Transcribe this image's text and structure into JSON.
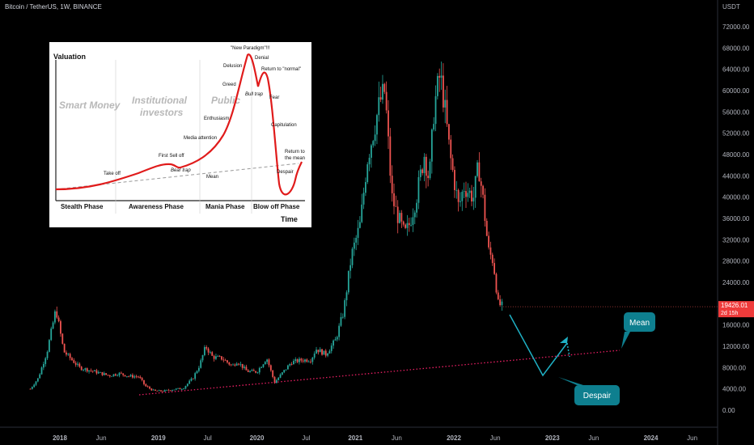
{
  "header": {
    "title": "Bitcoin / TetherUS, 1W, BINANCE"
  },
  "chart_data": {
    "type": "candlestick",
    "currency": "USDT",
    "yticks": [
      "0.00",
      "4000.00",
      "8000.00",
      "12000.00",
      "16000.00",
      "20000.00",
      "24000.00",
      "28000.00",
      "32000.00",
      "36000.00",
      "40000.00",
      "44000.00",
      "48000.00",
      "52000.00",
      "56000.00",
      "60000.00",
      "64000.00",
      "68000.00",
      "72000.00"
    ],
    "xticks": [
      "2018",
      "Jun",
      "2019",
      "Jul",
      "2020",
      "Jul",
      "2021",
      "Jun",
      "2022",
      "Jun",
      "2023",
      "Jun",
      "2024",
      "Jun"
    ],
    "last_price": "19426.01",
    "countdown": "2d 15h",
    "annotations": [
      {
        "name": "Mean",
        "text": "Mean"
      },
      {
        "name": "Despair",
        "text": "Despair"
      }
    ],
    "price_path": [
      [
        2017.7,
        4000
      ],
      [
        2017.78,
        6000
      ],
      [
        2017.87,
        11000
      ],
      [
        2017.96,
        19000
      ],
      [
        2018.04,
        11000
      ],
      [
        2018.12,
        9500
      ],
      [
        2018.2,
        8000
      ],
      [
        2018.3,
        7500
      ],
      [
        2018.4,
        7000
      ],
      [
        2018.5,
        6500
      ],
      [
        2018.6,
        6900
      ],
      [
        2018.7,
        6400
      ],
      [
        2018.8,
        6300
      ],
      [
        2018.87,
        4500
      ],
      [
        2018.96,
        3600
      ],
      [
        2019.05,
        3600
      ],
      [
        2019.15,
        3900
      ],
      [
        2019.25,
        4100
      ],
      [
        2019.35,
        6000
      ],
      [
        2019.42,
        8500
      ],
      [
        2019.48,
        12000
      ],
      [
        2019.55,
        10000
      ],
      [
        2019.65,
        9700
      ],
      [
        2019.75,
        8300
      ],
      [
        2019.8,
        9200
      ],
      [
        2019.9,
        7300
      ],
      [
        2020.0,
        7200
      ],
      [
        2020.1,
        9800
      ],
      [
        2020.18,
        5200
      ],
      [
        2020.25,
        6800
      ],
      [
        2020.35,
        9000
      ],
      [
        2020.45,
        9400
      ],
      [
        2020.55,
        9500
      ],
      [
        2020.6,
        11500
      ],
      [
        2020.7,
        10500
      ],
      [
        2020.8,
        13200
      ],
      [
        2020.88,
        18500
      ],
      [
        2020.96,
        29000
      ],
      [
        2021.05,
        35000
      ],
      [
        2021.12,
        47000
      ],
      [
        2021.18,
        52000
      ],
      [
        2021.25,
        58000
      ],
      [
        2021.3,
        60000
      ],
      [
        2021.37,
        40000
      ],
      [
        2021.42,
        37000
      ],
      [
        2021.5,
        33000
      ],
      [
        2021.55,
        35000
      ],
      [
        2021.62,
        40000
      ],
      [
        2021.7,
        48000
      ],
      [
        2021.75,
        43000
      ],
      [
        2021.8,
        57000
      ],
      [
        2021.86,
        63000
      ],
      [
        2021.9,
        58000
      ],
      [
        2021.96,
        48000
      ],
      [
        2022.05,
        38000
      ],
      [
        2022.1,
        42000
      ],
      [
        2022.2,
        40000
      ],
      [
        2022.25,
        46000
      ],
      [
        2022.3,
        39000
      ],
      [
        2022.35,
        30000
      ],
      [
        2022.4,
        28000
      ],
      [
        2022.45,
        20000
      ],
      [
        2022.5,
        19400
      ]
    ]
  },
  "inset": {
    "title": "Valuation",
    "xaxis": "Time",
    "watermarks": [
      "Smart Money",
      "Institutional",
      "investors",
      "Public"
    ],
    "phases": [
      "Stealth Phase",
      "Awareness Phase",
      "Mania Phase",
      "Blow off Phase"
    ],
    "labels": [
      "Take off",
      "First Sell off",
      "Bear trap",
      "Media attention",
      "Enthusiasm",
      "Greed",
      "Delusion",
      "\"New Paradigm\"!!!",
      "Denial",
      "Return to \"normal\"",
      "Bull trap",
      "Fear",
      "Capitulation",
      "Despair",
      "Return to",
      "the mean",
      "Mean"
    ]
  }
}
